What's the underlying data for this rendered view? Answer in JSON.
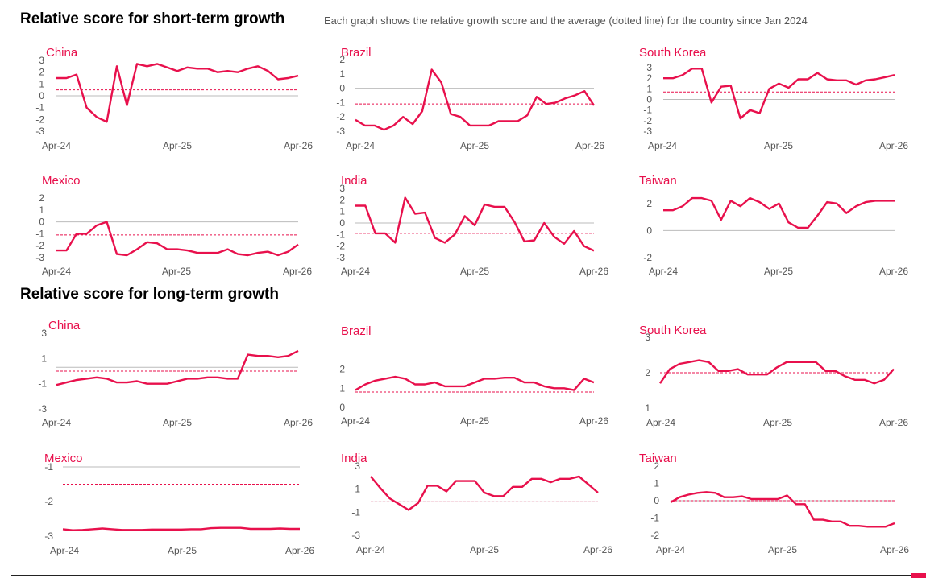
{
  "colors": {
    "accent": "#e8104c",
    "text": "#555555",
    "zero_line": "#bbbbbb"
  },
  "sections": [
    {
      "title": "Relative score for short-term growth"
    },
    {
      "title": "Relative score for long-term growth"
    }
  ],
  "subtitle": "Each graph shows the relative growth score and the average (dotted line) for the country since Jan 2024",
  "chart_data": [
    {
      "type": "line",
      "section": "short-term",
      "title": "China",
      "x_ticks": [
        "Apr-24",
        "Apr-25",
        "Apr-26"
      ],
      "yticks": [
        3,
        2,
        1,
        0,
        -1,
        -2,
        -3
      ],
      "ylim": [
        -3,
        3
      ],
      "average": 0.5,
      "reference": 0,
      "values": [
        1.5,
        1.5,
        1.8,
        -1.0,
        -1.8,
        -2.2,
        2.5,
        -0.8,
        2.7,
        2.5,
        2.7,
        2.4,
        2.1,
        2.4,
        2.3,
        2.3,
        2.0,
        2.1,
        2.0,
        2.3,
        2.5,
        2.1,
        1.4,
        1.5,
        1.7
      ]
    },
    {
      "type": "line",
      "section": "short-term",
      "title": "Brazil",
      "x_ticks": [
        "Apr-24",
        "Apr-25",
        "Apr-26"
      ],
      "yticks": [
        2,
        1,
        0,
        -1,
        -2,
        -3
      ],
      "ylim": [
        -3,
        2
      ],
      "average": -1.1,
      "reference": 0,
      "values": [
        -2.2,
        -2.6,
        -2.6,
        -2.9,
        -2.6,
        -2.0,
        -2.5,
        -1.6,
        1.3,
        0.4,
        -1.8,
        -2.0,
        -2.6,
        -2.6,
        -2.6,
        -2.3,
        -2.3,
        -2.3,
        -1.9,
        -0.6,
        -1.1,
        -1.0,
        -0.7,
        -0.5,
        -0.2,
        -1.2
      ]
    },
    {
      "type": "line",
      "section": "short-term",
      "title": "South Korea",
      "x_ticks": [
        "Apr-24",
        "Apr-25",
        "Apr-26"
      ],
      "yticks": [
        3,
        2,
        1,
        0,
        -1,
        -2,
        -3
      ],
      "ylim": [
        -3,
        3
      ],
      "average": 0.7,
      "reference": 0,
      "values": [
        2.0,
        2.0,
        2.3,
        2.9,
        2.9,
        -0.3,
        1.2,
        1.3,
        -1.8,
        -1.0,
        -1.3,
        1.0,
        1.5,
        1.1,
        1.9,
        1.9,
        2.5,
        1.9,
        1.8,
        1.8,
        1.4,
        1.8,
        1.9,
        2.1,
        2.3
      ]
    },
    {
      "type": "line",
      "section": "short-term",
      "title": "Mexico",
      "x_ticks": [
        "Apr-24",
        "Apr-25",
        "Apr-26"
      ],
      "yticks": [
        2,
        1,
        0,
        -1,
        -2,
        -3
      ],
      "ylim": [
        -3,
        2
      ],
      "average": -1.1,
      "reference": 0,
      "values": [
        -2.4,
        -2.4,
        -1.0,
        -1.0,
        -0.3,
        0.0,
        -2.7,
        -2.8,
        -2.3,
        -1.7,
        -1.8,
        -2.3,
        -2.3,
        -2.4,
        -2.6,
        -2.6,
        -2.6,
        -2.3,
        -2.7,
        -2.8,
        -2.6,
        -2.5,
        -2.8,
        -2.5,
        -1.9
      ]
    },
    {
      "type": "line",
      "section": "short-term",
      "title": "India",
      "x_ticks": [
        "Apr-24",
        "Apr-25",
        "Apr-26"
      ],
      "yticks": [
        3,
        2,
        1,
        0,
        -1,
        -2,
        -3
      ],
      "ylim": [
        -3,
        3
      ],
      "average": -0.9,
      "reference": 0,
      "values": [
        1.5,
        1.5,
        -0.9,
        -0.9,
        -1.7,
        2.2,
        0.8,
        0.9,
        -1.3,
        -1.7,
        -1.0,
        0.6,
        -0.2,
        1.6,
        1.4,
        1.4,
        0.1,
        -1.6,
        -1.5,
        0.0,
        -1.2,
        -1.8,
        -0.7,
        -2.0,
        -2.4
      ]
    },
    {
      "type": "line",
      "section": "short-term",
      "title": "Taiwan",
      "x_ticks": [
        "Apr-24",
        "Apr-25",
        "Apr-26"
      ],
      "yticks": [
        2,
        0,
        -2
      ],
      "ylim": [
        -2,
        3
      ],
      "average": 1.3,
      "reference": 0,
      "values": [
        1.5,
        1.5,
        1.8,
        2.4,
        2.4,
        2.2,
        0.8,
        2.2,
        1.8,
        2.4,
        2.1,
        1.6,
        2.0,
        0.6,
        0.2,
        0.2,
        1.1,
        2.1,
        2.0,
        1.3,
        1.8,
        2.1,
        2.2,
        2.2,
        2.2
      ]
    },
    {
      "type": "line",
      "section": "long-term",
      "title": "China",
      "x_ticks": [
        "Apr-24",
        "Apr-25",
        "Apr-26"
      ],
      "yticks": [
        3,
        1,
        -1,
        -3
      ],
      "ylim": [
        -3,
        3
      ],
      "average": 0.0,
      "reference": 0.3,
      "values": [
        -1.1,
        -0.9,
        -0.7,
        -0.6,
        -0.5,
        -0.6,
        -0.9,
        -0.9,
        -0.8,
        -1.0,
        -1.0,
        -1.0,
        -0.8,
        -0.6,
        -0.6,
        -0.5,
        -0.5,
        -0.6,
        -0.6,
        1.3,
        1.2,
        1.2,
        1.1,
        1.2,
        1.6
      ]
    },
    {
      "type": "line",
      "section": "long-term",
      "title": "Brazil",
      "x_ticks": [
        "Apr-24",
        "Apr-25",
        "Apr-26"
      ],
      "yticks": [
        2,
        1,
        0
      ],
      "ylim": [
        0,
        2.4
      ],
      "average": 0.8,
      "reference": null,
      "values": [
        0.9,
        1.2,
        1.4,
        1.5,
        1.6,
        1.5,
        1.2,
        1.2,
        1.3,
        1.1,
        1.1,
        1.1,
        1.3,
        1.5,
        1.5,
        1.55,
        1.55,
        1.3,
        1.3,
        1.1,
        1.0,
        1.0,
        0.9,
        1.5,
        1.3
      ]
    },
    {
      "type": "line",
      "section": "long-term",
      "title": "South Korea",
      "x_ticks": [
        "Apr-24",
        "Apr-25",
        "Apr-26"
      ],
      "yticks": [
        3,
        2,
        1
      ],
      "ylim": [
        1,
        3
      ],
      "average": 2.0,
      "reference": null,
      "values": [
        1.7,
        2.1,
        2.25,
        2.3,
        2.35,
        2.3,
        2.05,
        2.05,
        2.1,
        1.95,
        1.95,
        1.95,
        2.15,
        2.3,
        2.3,
        2.3,
        2.3,
        2.05,
        2.05,
        1.9,
        1.8,
        1.8,
        1.7,
        1.8,
        2.1
      ]
    },
    {
      "type": "line",
      "section": "long-term",
      "title": "Mexico",
      "x_ticks": [
        "Apr-24",
        "Apr-25",
        "Apr-26"
      ],
      "yticks": [
        -1,
        -2,
        -3
      ],
      "ylim": [
        -3,
        -1
      ],
      "average": -1.5,
      "reference": -1.0,
      "values": [
        -2.8,
        -2.83,
        -2.82,
        -2.8,
        -2.78,
        -2.8,
        -2.82,
        -2.82,
        -2.82,
        -2.81,
        -2.81,
        -2.81,
        -2.81,
        -2.8,
        -2.8,
        -2.77,
        -2.76,
        -2.76,
        -2.76,
        -2.79,
        -2.79,
        -2.79,
        -2.78,
        -2.79,
        -2.79
      ]
    },
    {
      "type": "line",
      "section": "long-term",
      "title": "India",
      "x_ticks": [
        "Apr-24",
        "Apr-25",
        "Apr-26"
      ],
      "yticks": [
        3,
        1,
        -1,
        -3
      ],
      "ylim": [
        -3,
        3
      ],
      "average": -0.1,
      "reference": -0.1,
      "values": [
        2.1,
        1.1,
        0.2,
        -0.3,
        -0.8,
        -0.2,
        1.3,
        1.3,
        0.8,
        1.7,
        1.7,
        1.7,
        0.7,
        0.4,
        0.4,
        1.2,
        1.2,
        1.9,
        1.9,
        1.6,
        1.9,
        1.9,
        2.1,
        1.4,
        0.7
      ]
    },
    {
      "type": "line",
      "section": "long-term",
      "title": "Taiwan",
      "x_ticks": [
        "Apr-24",
        "Apr-25",
        "Apr-26"
      ],
      "yticks": [
        2,
        1,
        0,
        -1,
        -2
      ],
      "ylim": [
        -2,
        2
      ],
      "average": 0.0,
      "reference": 0,
      "values": [
        -0.1,
        0.2,
        0.35,
        0.45,
        0.5,
        0.45,
        0.2,
        0.2,
        0.25,
        0.1,
        0.1,
        0.1,
        0.1,
        0.3,
        -0.2,
        -0.2,
        -1.1,
        -1.1,
        -1.2,
        -1.2,
        -1.45,
        -1.45,
        -1.5,
        -1.5,
        -1.5,
        -1.3
      ]
    }
  ]
}
